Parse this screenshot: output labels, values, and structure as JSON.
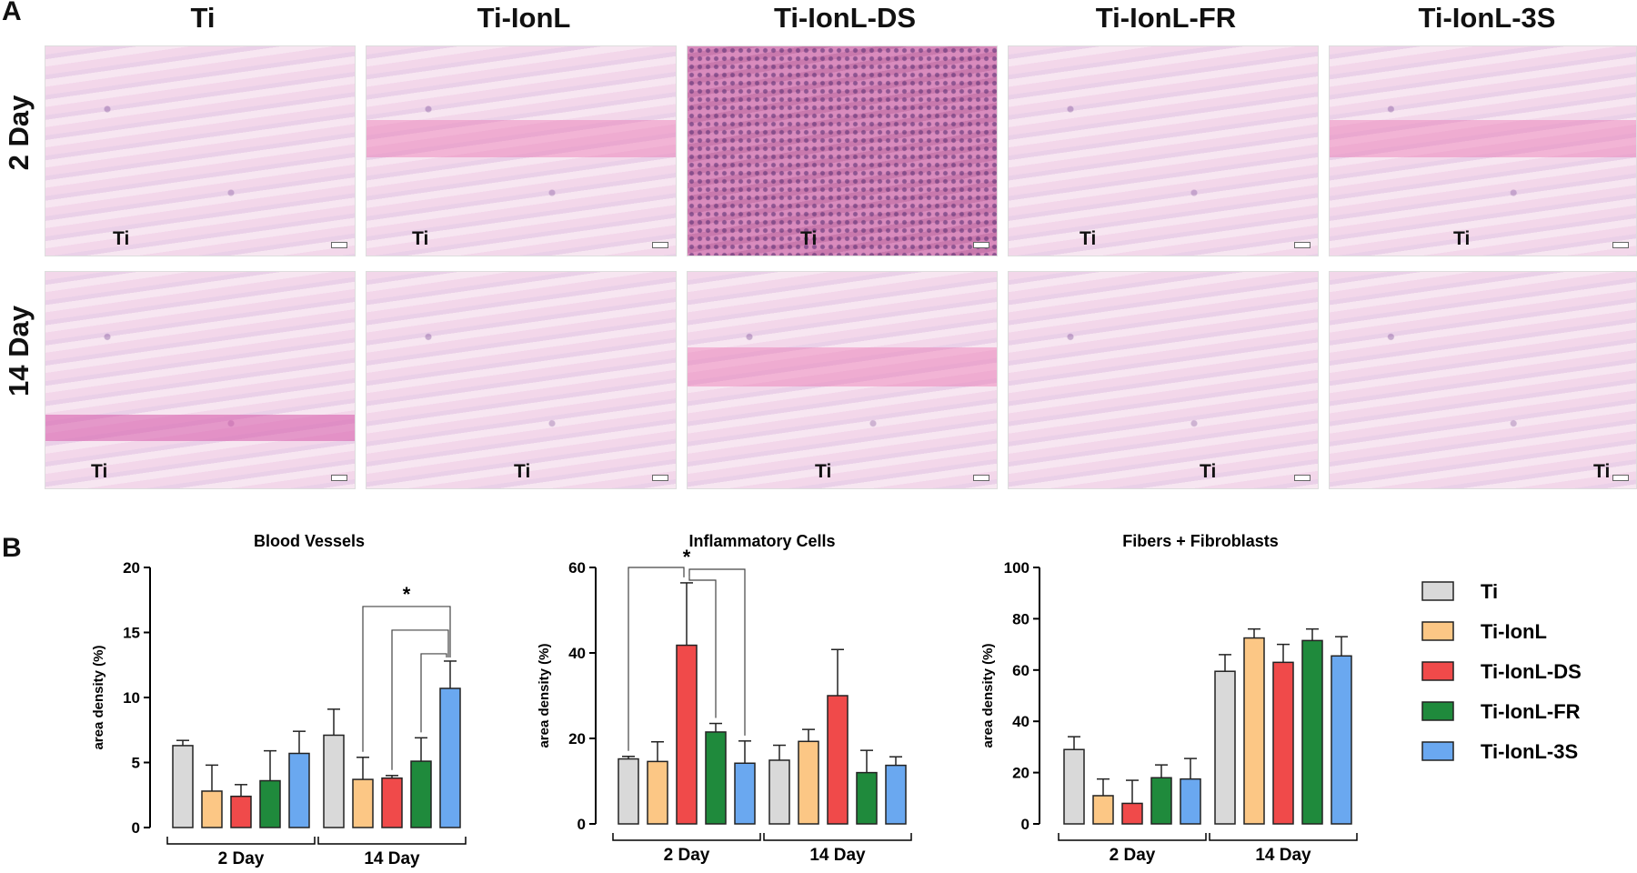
{
  "panel_a_letter": "A",
  "panel_b_letter": "B",
  "groups": [
    "Ti",
    "Ti-IonL",
    "Ti-IonL-DS",
    "Ti-IonL-FR",
    "Ti-IonL-3S"
  ],
  "timepoints": [
    "2 Day",
    "14 Day"
  ],
  "image_ti_label": "Ti",
  "colors": {
    "Ti": "#d9d9d9",
    "Ti-IonL": "#fcc785",
    "Ti-IonL-DS": "#f04a4a",
    "Ti-IonL-FR": "#1f8a3c",
    "Ti-IonL-3S": "#6aa8f0"
  },
  "chart_data": [
    {
      "type": "bar",
      "title": "Blood Vessels",
      "ylabel": "area density (%)",
      "ylim": [
        0,
        20
      ],
      "yticks": [
        "0",
        "5",
        "10",
        "15",
        "20"
      ],
      "categories": [
        "2 Day",
        "14 Day"
      ],
      "series": [
        {
          "name": "Ti",
          "values": [
            6.3,
            7.1
          ],
          "errors": [
            0.4,
            2.0
          ]
        },
        {
          "name": "Ti-IonL",
          "values": [
            2.8,
            3.7
          ],
          "errors": [
            2.0,
            1.7
          ]
        },
        {
          "name": "Ti-IonL-DS",
          "values": [
            2.4,
            3.8
          ],
          "errors": [
            0.9,
            0.2
          ]
        },
        {
          "name": "Ti-IonL-FR",
          "values": [
            3.6,
            5.1
          ],
          "errors": [
            2.3,
            1.8
          ]
        },
        {
          "name": "Ti-IonL-3S",
          "values": [
            5.7,
            10.7
          ],
          "errors": [
            1.7,
            2.1
          ]
        }
      ],
      "significance": "*"
    },
    {
      "type": "bar",
      "title": "Inflammatory Cells",
      "ylabel": "area density (%)",
      "ylim": [
        0,
        60
      ],
      "yticks": [
        "0",
        "20",
        "40",
        "60"
      ],
      "categories": [
        "2 Day",
        "14 Day"
      ],
      "series": [
        {
          "name": "Ti",
          "values": [
            15.2,
            14.9
          ],
          "errors": [
            0.6,
            3.5
          ]
        },
        {
          "name": "Ti-IonL",
          "values": [
            14.6,
            19.3
          ],
          "errors": [
            4.6,
            2.8
          ]
        },
        {
          "name": "Ti-IonL-DS",
          "values": [
            41.8,
            30.0
          ],
          "errors": [
            14.6,
            10.8
          ]
        },
        {
          "name": "Ti-IonL-FR",
          "values": [
            21.5,
            12.0
          ],
          "errors": [
            2.0,
            5.2
          ]
        },
        {
          "name": "Ti-IonL-3S",
          "values": [
            14.2,
            13.7
          ],
          "errors": [
            5.2,
            2.0
          ]
        }
      ],
      "significance": "*"
    },
    {
      "type": "bar",
      "title": "Fibers + Fibroblasts",
      "ylabel": "area density (%)",
      "ylim": [
        0,
        100
      ],
      "yticks": [
        "0",
        "20",
        "40",
        "60",
        "80",
        "100"
      ],
      "categories": [
        "2 Day",
        "14 Day"
      ],
      "series": [
        {
          "name": "Ti",
          "values": [
            29.0,
            59.5
          ],
          "errors": [
            5.0,
            6.5
          ]
        },
        {
          "name": "Ti-IonL",
          "values": [
            11.0,
            72.5
          ],
          "errors": [
            6.5,
            3.5
          ]
        },
        {
          "name": "Ti-IonL-DS",
          "values": [
            8.0,
            63.0
          ],
          "errors": [
            9.0,
            7.0
          ]
        },
        {
          "name": "Ti-IonL-FR",
          "values": [
            18.0,
            71.5
          ],
          "errors": [
            5.0,
            4.5
          ]
        },
        {
          "name": "Ti-IonL-3S",
          "values": [
            17.5,
            65.5
          ],
          "errors": [
            8.0,
            7.5
          ]
        }
      ]
    }
  ],
  "legend": [
    "Ti",
    "Ti-IonL",
    "Ti-IonL-DS",
    "Ti-IonL-FR",
    "Ti-IonL-3S"
  ]
}
